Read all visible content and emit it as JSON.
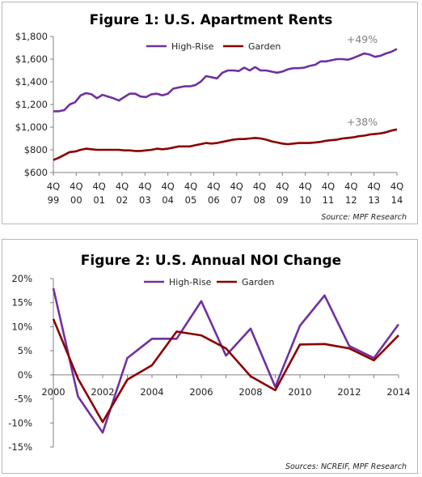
{
  "colors": {
    "high_rise": "#7030a0",
    "garden": "#8b0000",
    "axis": "#808080"
  },
  "charts": [
    {
      "type": "line",
      "title": "Figure 1: U.S. Apartment Rents",
      "source": "Source: MPF Research",
      "ylim": [
        600,
        1800
      ],
      "yticks": [
        "$600",
        "$800",
        "$1,000",
        "$1,200",
        "$1,400",
        "$1,600",
        "$1,800"
      ],
      "ytick_values": [
        600,
        800,
        1000,
        1200,
        1400,
        1600,
        1800
      ],
      "xticks": [
        {
          "q": "4Q",
          "y": "99"
        },
        {
          "q": "4Q",
          "y": "00"
        },
        {
          "q": "4Q",
          "y": "01"
        },
        {
          "q": "4Q",
          "y": "02"
        },
        {
          "q": "4Q",
          "y": "03"
        },
        {
          "q": "4Q",
          "y": "04"
        },
        {
          "q": "4Q",
          "y": "05"
        },
        {
          "q": "4Q",
          "y": "06"
        },
        {
          "q": "4Q",
          "y": "07"
        },
        {
          "q": "4Q",
          "y": "08"
        },
        {
          "q": "4Q",
          "y": "09"
        },
        {
          "q": "4Q",
          "y": "10"
        },
        {
          "q": "4Q",
          "y": "11"
        },
        {
          "q": "4Q",
          "y": "12"
        },
        {
          "q": "4Q",
          "y": "13"
        },
        {
          "q": "4Q",
          "y": "14"
        }
      ],
      "annotations": [
        {
          "text": "+49%",
          "series": "High-Rise"
        },
        {
          "text": "+38%",
          "series": "Garden"
        }
      ],
      "series": [
        {
          "name": "High-Rise",
          "values": [
            1140,
            1140,
            1150,
            1200,
            1220,
            1280,
            1300,
            1290,
            1255,
            1285,
            1270,
            1255,
            1235,
            1265,
            1295,
            1295,
            1270,
            1265,
            1290,
            1295,
            1280,
            1295,
            1340,
            1350,
            1360,
            1360,
            1370,
            1400,
            1450,
            1440,
            1430,
            1480,
            1500,
            1500,
            1495,
            1525,
            1500,
            1530,
            1500,
            1500,
            1490,
            1480,
            1490,
            1510,
            1520,
            1520,
            1525,
            1540,
            1550,
            1580,
            1580,
            1590,
            1600,
            1600,
            1595,
            1610,
            1630,
            1650,
            1640,
            1620,
            1630,
            1650,
            1665,
            1690
          ]
        },
        {
          "name": "Garden",
          "values": [
            710,
            730,
            755,
            780,
            785,
            800,
            810,
            805,
            800,
            800,
            800,
            800,
            800,
            795,
            795,
            790,
            790,
            795,
            800,
            810,
            805,
            810,
            820,
            830,
            830,
            830,
            840,
            850,
            860,
            855,
            860,
            870,
            880,
            890,
            895,
            895,
            900,
            905,
            900,
            890,
            875,
            865,
            855,
            850,
            855,
            860,
            860,
            860,
            865,
            870,
            880,
            885,
            890,
            900,
            905,
            910,
            920,
            925,
            935,
            940,
            945,
            955,
            970,
            980
          ]
        }
      ]
    },
    {
      "type": "line",
      "title": "Figure 2: U.S. Annual NOI Change",
      "source": "Sources: NCREIF, MPF Research",
      "ylim": [
        -15,
        20
      ],
      "yticks": [
        "-15%",
        "-10%",
        "-5%",
        "0%",
        "5%",
        "10%",
        "15%",
        "20%"
      ],
      "ytick_values": [
        -15,
        -10,
        -5,
        0,
        5,
        10,
        15,
        20
      ],
      "xticks": [
        "2000",
        "2002",
        "2004",
        "2006",
        "2008",
        "2010",
        "2012",
        "2014"
      ],
      "xtick_values": [
        2000,
        2002,
        2004,
        2006,
        2008,
        2010,
        2012,
        2014
      ],
      "x": [
        2000,
        2001,
        2002,
        2003,
        2004,
        2005,
        2006,
        2007,
        2008,
        2009,
        2010,
        2011,
        2012,
        2013,
        2014
      ],
      "series": [
        {
          "name": "High-Rise",
          "values": [
            18,
            -4.5,
            -12,
            3.5,
            7.5,
            7.5,
            15.3,
            4,
            9.6,
            -2.5,
            10.2,
            16.5,
            6,
            3.5,
            10.5
          ]
        },
        {
          "name": "Garden",
          "values": [
            11.6,
            -0.8,
            -9.8,
            -1,
            2,
            9,
            8.2,
            5.5,
            -0.3,
            -3.2,
            6.3,
            6.4,
            5.5,
            3,
            8.2
          ]
        }
      ]
    }
  ]
}
